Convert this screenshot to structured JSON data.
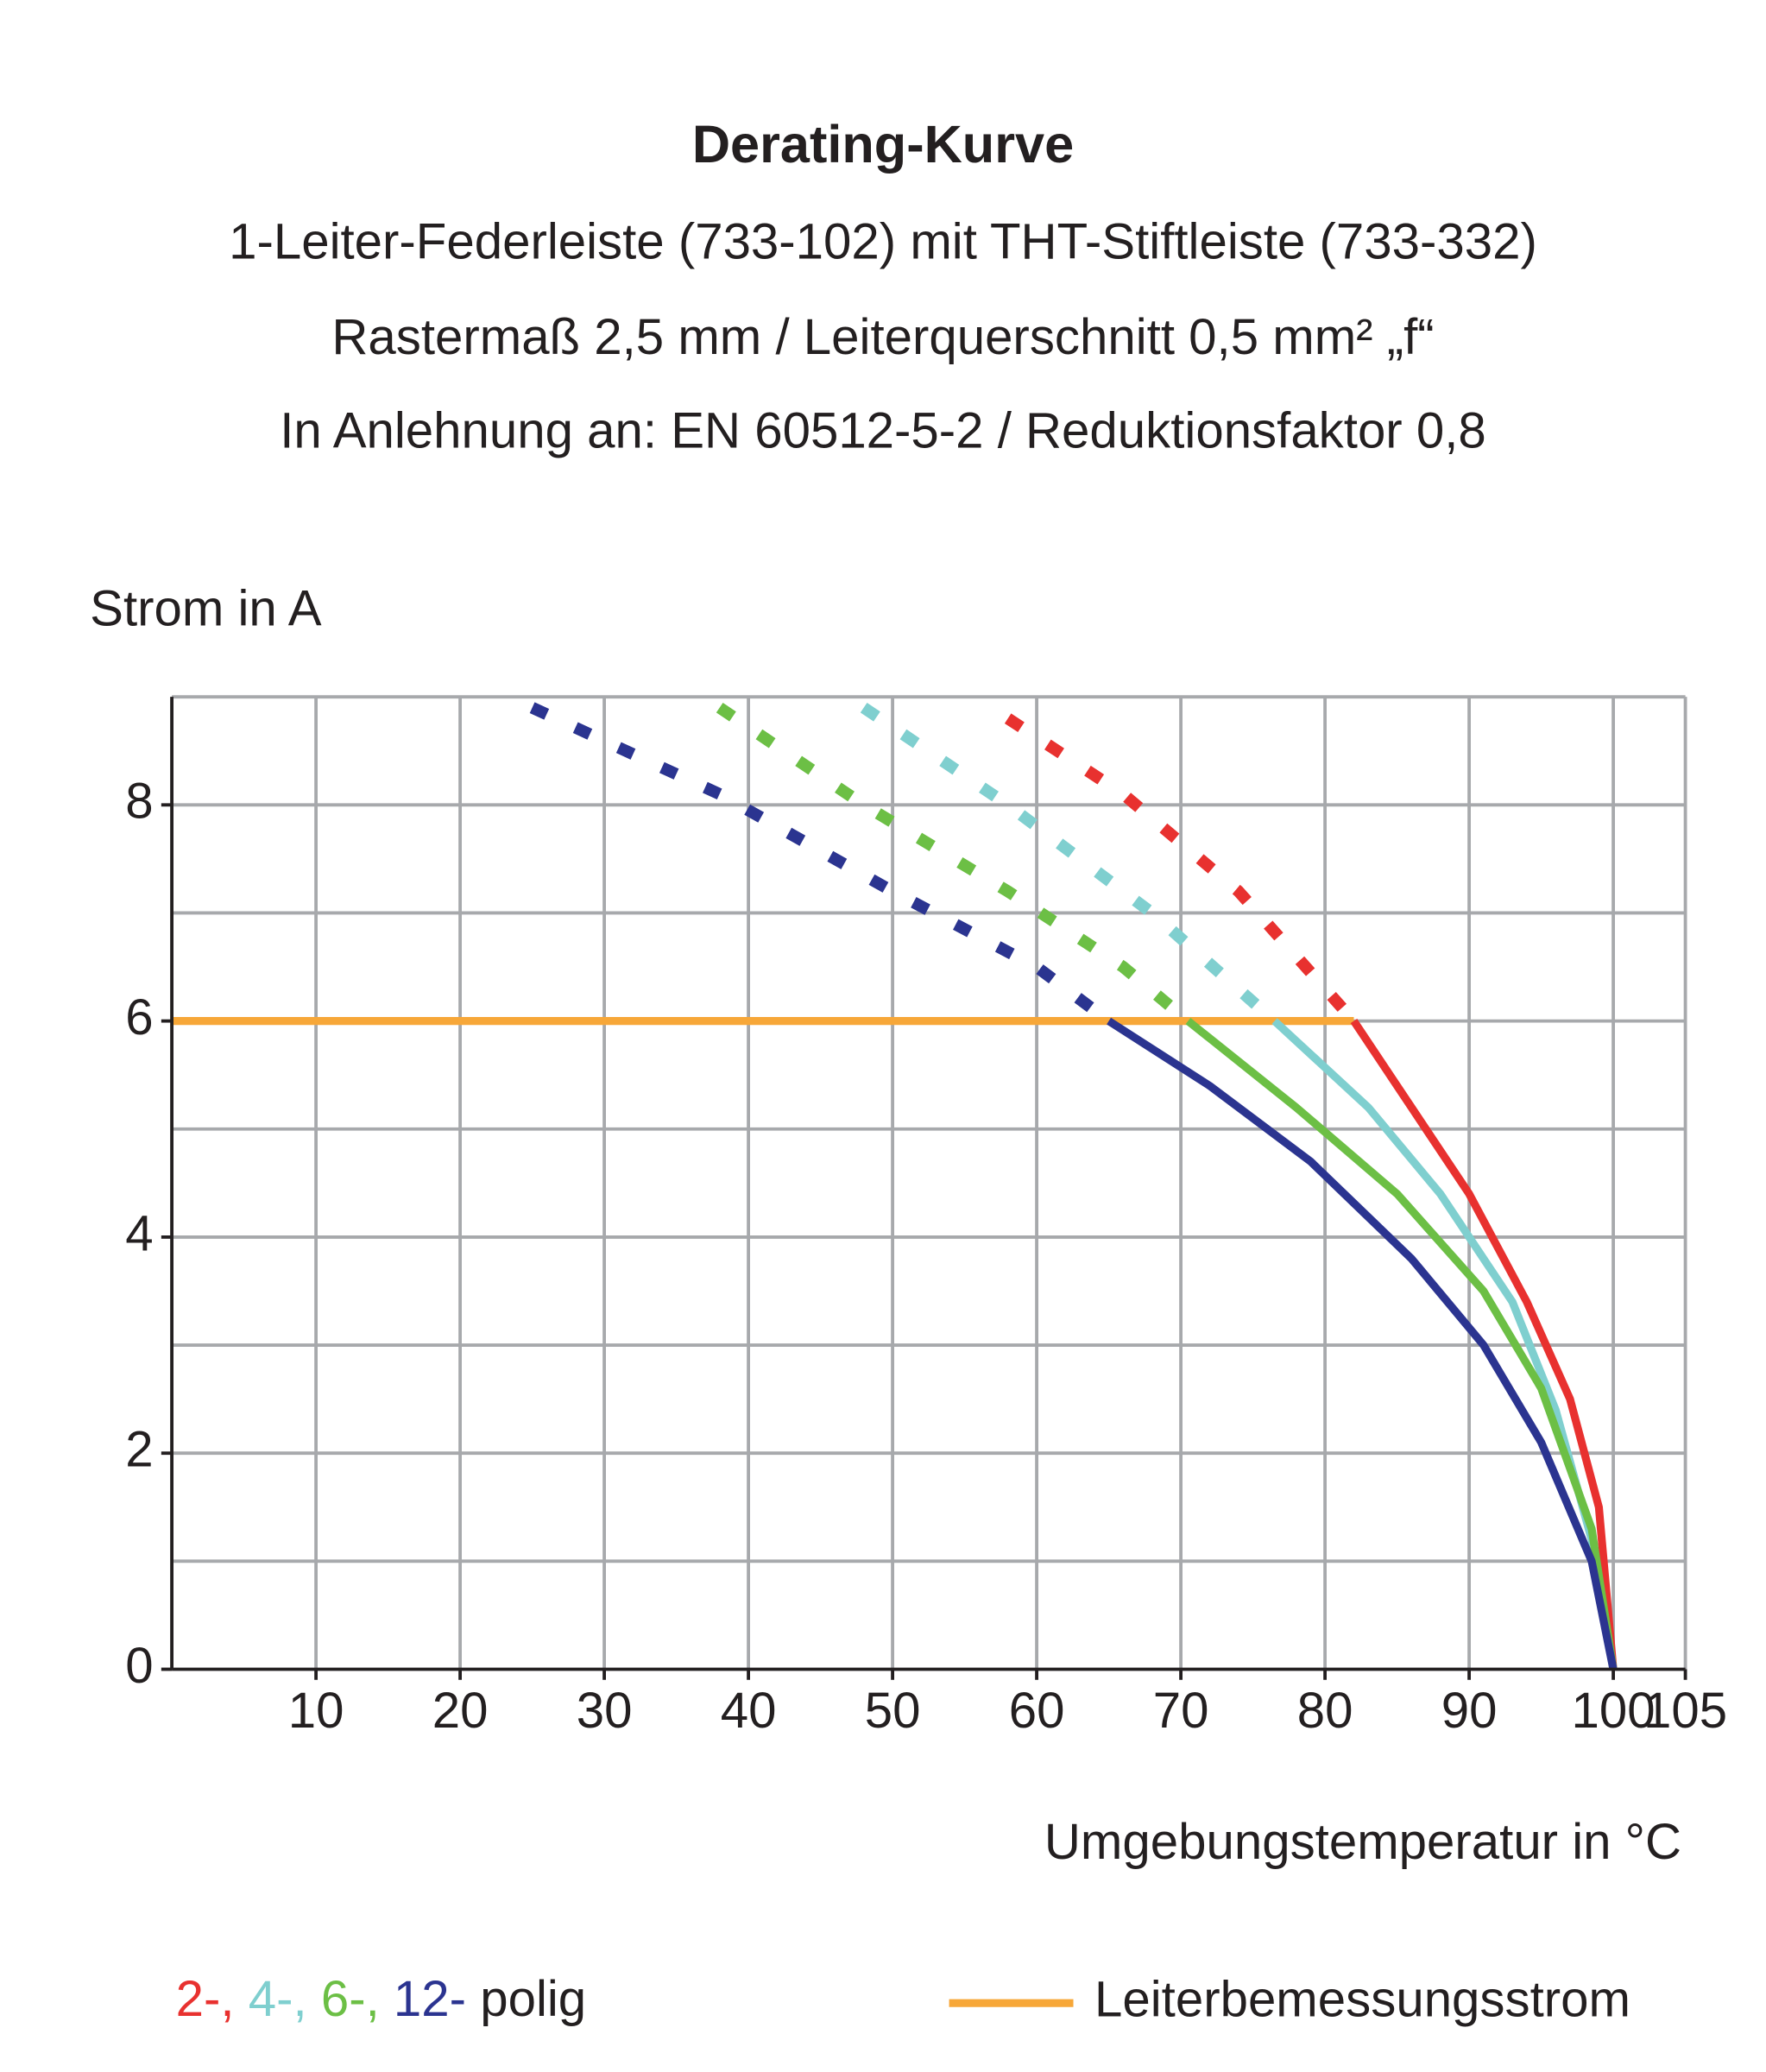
{
  "chart_data": {
    "type": "line",
    "title": "Derating-Kurve",
    "subtitle": [
      "1-Leiter-Federleiste (733-102) mit THT-Stiftleiste (733-332)",
      "Rastermaß 2,5 mm / Leiterquerschnitt 0,5 mm² „f“",
      "In Anlehnung an: EN 60512-5-2 / Reduktionsfaktor 0,8"
    ],
    "y_label": "Strom in A",
    "x_label": "Umgebungstemperatur in °C",
    "xlim": [
      0,
      105
    ],
    "ylim": [
      0,
      9
    ],
    "xticks": [
      10,
      20,
      30,
      40,
      50,
      60,
      70,
      80,
      90,
      100,
      105
    ],
    "yticks": [
      0,
      2,
      4,
      6,
      8
    ],
    "y_gridlines": [
      1,
      2,
      3,
      4,
      5,
      6,
      7,
      8,
      9
    ],
    "grid": true,
    "series": [
      {
        "name": "2-,",
        "color": "#e8312f",
        "x": [
          82,
          86,
          90,
          94,
          97,
          99,
          100
        ],
        "values": [
          6,
          5.2,
          4.4,
          3.4,
          2.5,
          1.5,
          0
        ]
      },
      {
        "name": "4-,",
        "color": "#7fcfcf",
        "x": [
          76.5,
          83,
          88,
          93,
          96,
          98.5,
          100
        ],
        "values": [
          6,
          5.2,
          4.4,
          3.4,
          2.4,
          1.2,
          0
        ]
      },
      {
        "name": "6-,",
        "color": "#6cbf45",
        "x": [
          70.5,
          78,
          85,
          91,
          95,
          98.5,
          100
        ],
        "values": [
          6,
          5.2,
          4.4,
          3.5,
          2.6,
          1.3,
          0
        ]
      },
      {
        "name": "12-",
        "color": "#2b3490",
        "x": [
          65,
          72,
          79,
          86,
          91,
          95,
          98.5,
          100
        ],
        "values": [
          6,
          5.4,
          4.7,
          3.8,
          3.0,
          2.1,
          1.0,
          0
        ]
      },
      {
        "color": "#e8312f",
        "style": "dashed",
        "x": [
          58,
          66,
          74,
          82
        ],
        "values": [
          8.8,
          8.1,
          7.2,
          6
        ]
      },
      {
        "color": "#7fcfcf",
        "style": "dashed",
        "x": [
          48,
          58,
          68,
          76.5
        ],
        "values": [
          8.9,
          8.0,
          7.0,
          6
        ]
      },
      {
        "color": "#6cbf45",
        "style": "dashed",
        "x": [
          38,
          48,
          58,
          66,
          70.5
        ],
        "values": [
          8.9,
          8.0,
          7.2,
          6.5,
          6
        ]
      },
      {
        "color": "#2b3490",
        "style": "dashed",
        "x": [
          25,
          38,
          50,
          60,
          65
        ],
        "values": [
          8.9,
          8.1,
          7.2,
          6.5,
          6
        ]
      }
    ],
    "legend_suffix": "polig",
    "reference_line": {
      "name": "Leiterbemessungsstrom",
      "color": "#f7a738",
      "x": [
        0,
        82
      ],
      "values": [
        6,
        6
      ]
    }
  }
}
